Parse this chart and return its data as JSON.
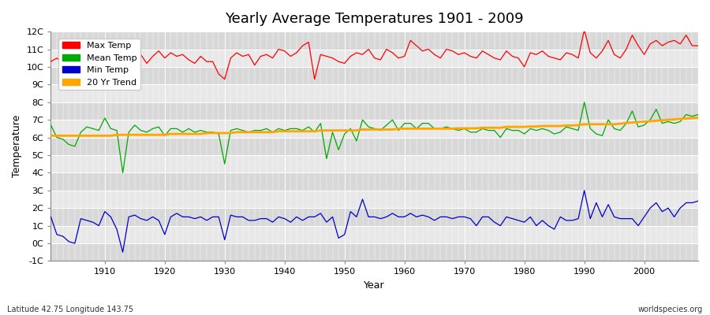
{
  "title": "Yearly Average Temperatures 1901 - 2009",
  "xlabel": "Year",
  "ylabel": "Temperature",
  "footnote_left": "Latitude 42.75 Longitude 143.75",
  "footnote_right": "worldspecies.org",
  "years": [
    1901,
    1902,
    1903,
    1904,
    1905,
    1906,
    1907,
    1908,
    1909,
    1910,
    1911,
    1912,
    1913,
    1914,
    1915,
    1916,
    1917,
    1918,
    1919,
    1920,
    1921,
    1922,
    1923,
    1924,
    1925,
    1926,
    1927,
    1928,
    1929,
    1930,
    1931,
    1932,
    1933,
    1934,
    1935,
    1936,
    1937,
    1938,
    1939,
    1940,
    1941,
    1942,
    1943,
    1944,
    1945,
    1946,
    1947,
    1948,
    1949,
    1950,
    1951,
    1952,
    1953,
    1954,
    1955,
    1956,
    1957,
    1958,
    1959,
    1960,
    1961,
    1962,
    1963,
    1964,
    1965,
    1966,
    1967,
    1968,
    1969,
    1970,
    1971,
    1972,
    1973,
    1974,
    1975,
    1976,
    1977,
    1978,
    1979,
    1980,
    1981,
    1982,
    1983,
    1984,
    1985,
    1986,
    1987,
    1988,
    1989,
    1990,
    1991,
    1992,
    1993,
    1994,
    1995,
    1996,
    1997,
    1998,
    1999,
    2000,
    2001,
    2002,
    2003,
    2004,
    2005,
    2006,
    2007,
    2008,
    2009
  ],
  "max_temp": [
    10.3,
    10.5,
    10.2,
    10.4,
    10.8,
    10.6,
    11.0,
    10.8,
    10.2,
    10.0,
    10.6,
    10.3,
    9.3,
    10.3,
    10.5,
    10.7,
    10.2,
    10.6,
    10.9,
    10.5,
    10.8,
    10.6,
    10.7,
    10.4,
    10.2,
    10.6,
    10.3,
    10.3,
    9.6,
    9.3,
    10.5,
    10.8,
    10.6,
    10.7,
    10.1,
    10.6,
    10.7,
    10.5,
    11.0,
    10.9,
    10.6,
    10.8,
    11.2,
    11.4,
    9.3,
    10.7,
    10.6,
    10.5,
    10.3,
    10.2,
    10.6,
    10.8,
    10.7,
    11.0,
    10.5,
    10.4,
    11.0,
    10.8,
    10.5,
    10.6,
    11.5,
    11.2,
    10.9,
    11.0,
    10.7,
    10.5,
    11.0,
    10.9,
    10.7,
    10.8,
    10.6,
    10.5,
    10.9,
    10.7,
    10.5,
    10.4,
    10.9,
    10.6,
    10.5,
    10.0,
    10.8,
    10.7,
    10.9,
    10.6,
    10.5,
    10.4,
    10.8,
    10.7,
    10.5,
    12.1,
    10.8,
    10.5,
    10.9,
    11.5,
    10.7,
    10.5,
    11.0,
    11.8,
    11.2,
    10.7,
    11.3,
    11.5,
    11.2,
    11.4,
    11.5,
    11.3,
    11.8,
    11.2,
    11.2
  ],
  "mean_temp": [
    6.7,
    6.0,
    5.9,
    5.6,
    5.5,
    6.3,
    6.6,
    6.5,
    6.4,
    7.1,
    6.5,
    6.4,
    4.0,
    6.3,
    6.7,
    6.4,
    6.3,
    6.5,
    6.6,
    6.1,
    6.5,
    6.5,
    6.3,
    6.5,
    6.3,
    6.4,
    6.3,
    6.3,
    6.2,
    4.5,
    6.4,
    6.5,
    6.4,
    6.3,
    6.4,
    6.4,
    6.5,
    6.3,
    6.5,
    6.4,
    6.5,
    6.5,
    6.4,
    6.6,
    6.3,
    6.8,
    4.8,
    6.3,
    5.3,
    6.2,
    6.5,
    5.8,
    7.0,
    6.6,
    6.5,
    6.4,
    6.7,
    7.0,
    6.4,
    6.8,
    6.8,
    6.5,
    6.8,
    6.8,
    6.5,
    6.5,
    6.6,
    6.5,
    6.4,
    6.5,
    6.3,
    6.3,
    6.5,
    6.4,
    6.4,
    6.0,
    6.5,
    6.4,
    6.4,
    6.2,
    6.5,
    6.4,
    6.5,
    6.4,
    6.2,
    6.3,
    6.6,
    6.5,
    6.4,
    8.0,
    6.5,
    6.2,
    6.1,
    7.0,
    6.5,
    6.4,
    6.8,
    7.5,
    6.6,
    6.7,
    7.0,
    7.6,
    6.8,
    6.9,
    6.8,
    6.9,
    7.3,
    7.2,
    7.3
  ],
  "min_temp": [
    1.5,
    0.5,
    0.4,
    0.1,
    0.0,
    1.4,
    1.3,
    1.2,
    1.0,
    1.8,
    1.5,
    0.8,
    -0.5,
    1.5,
    1.6,
    1.4,
    1.3,
    1.5,
    1.3,
    0.5,
    1.5,
    1.7,
    1.5,
    1.5,
    1.4,
    1.5,
    1.3,
    1.5,
    1.5,
    0.2,
    1.6,
    1.5,
    1.5,
    1.3,
    1.3,
    1.4,
    1.4,
    1.2,
    1.5,
    1.4,
    1.2,
    1.5,
    1.3,
    1.5,
    1.5,
    1.7,
    1.2,
    1.5,
    0.3,
    0.5,
    1.8,
    1.5,
    2.5,
    1.5,
    1.5,
    1.4,
    1.5,
    1.7,
    1.5,
    1.5,
    1.7,
    1.5,
    1.6,
    1.5,
    1.3,
    1.5,
    1.5,
    1.4,
    1.5,
    1.5,
    1.4,
    1.0,
    1.5,
    1.5,
    1.2,
    1.0,
    1.5,
    1.4,
    1.3,
    1.2,
    1.5,
    1.0,
    1.3,
    1.0,
    0.8,
    1.5,
    1.3,
    1.3,
    1.4,
    3.0,
    1.4,
    2.3,
    1.5,
    2.2,
    1.5,
    1.4,
    1.4,
    1.4,
    1.0,
    1.5,
    2.0,
    2.3,
    1.8,
    2.0,
    1.5,
    2.0,
    2.3,
    2.3,
    2.4
  ],
  "trend": [
    6.1,
    6.1,
    6.1,
    6.1,
    6.1,
    6.1,
    6.1,
    6.1,
    6.1,
    6.1,
    6.1,
    6.15,
    6.15,
    6.15,
    6.15,
    6.15,
    6.15,
    6.15,
    6.15,
    6.15,
    6.2,
    6.2,
    6.2,
    6.2,
    6.2,
    6.2,
    6.25,
    6.25,
    6.25,
    6.25,
    6.25,
    6.3,
    6.3,
    6.3,
    6.3,
    6.3,
    6.3,
    6.3,
    6.35,
    6.35,
    6.35,
    6.35,
    6.35,
    6.35,
    6.35,
    6.4,
    6.4,
    6.4,
    6.4,
    6.4,
    6.4,
    6.4,
    6.45,
    6.45,
    6.45,
    6.45,
    6.45,
    6.45,
    6.5,
    6.5,
    6.5,
    6.5,
    6.5,
    6.5,
    6.5,
    6.5,
    6.5,
    6.5,
    6.52,
    6.52,
    6.52,
    6.52,
    6.55,
    6.55,
    6.55,
    6.55,
    6.6,
    6.6,
    6.6,
    6.6,
    6.62,
    6.62,
    6.65,
    6.65,
    6.65,
    6.65,
    6.68,
    6.68,
    6.7,
    6.75,
    6.75,
    6.75,
    6.75,
    6.75,
    6.75,
    6.78,
    6.82,
    6.85,
    6.88,
    6.9,
    6.92,
    6.95,
    6.97,
    7.0,
    7.02,
    7.05,
    7.07,
    7.1,
    7.12
  ],
  "max_color": "#ff0000",
  "mean_color": "#00aa00",
  "min_color": "#0000cc",
  "trend_color": "#ffa500",
  "fig_bg_color": "#ffffff",
  "plot_bg_color_dark": "#d8d8d8",
  "plot_bg_color_light": "#e8e8e8",
  "grid_color": "#ffffff",
  "ylim": [
    -1,
    12
  ],
  "yticks": [
    -1,
    0,
    1,
    2,
    3,
    4,
    5,
    6,
    7,
    8,
    9,
    10,
    11,
    12
  ],
  "ytick_labels": [
    "-1C",
    "0C",
    "1C",
    "2C",
    "3C",
    "4C",
    "5C",
    "6C",
    "7C",
    "8C",
    "9C",
    "10C",
    "11C",
    "12C"
  ],
  "xlim": [
    1901,
    2009
  ],
  "xticks": [
    1910,
    1920,
    1930,
    1940,
    1950,
    1960,
    1970,
    1980,
    1990,
    2000
  ],
  "legend_labels": [
    "Max Temp",
    "Mean Temp",
    "Min Temp",
    "20 Yr Trend"
  ]
}
